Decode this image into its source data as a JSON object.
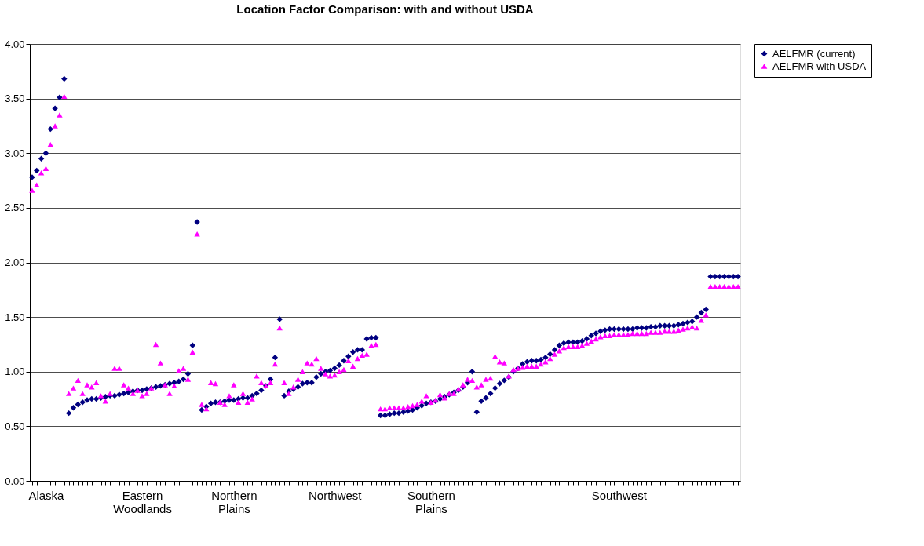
{
  "chart_data": {
    "type": "scatter",
    "title": "Location Factor Comparison: with and without USDA",
    "categories": [
      null,
      null,
      null,
      "Alaska",
      null,
      null,
      null,
      null,
      null,
      null,
      null,
      null,
      null,
      null,
      null,
      null,
      null,
      null,
      null,
      null,
      null,
      null,
      null,
      null,
      "Eastern Woodlands",
      null,
      null,
      null,
      null,
      null,
      null,
      null,
      null,
      null,
      null,
      null,
      null,
      null,
      null,
      null,
      null,
      null,
      null,
      null,
      "Northern Plains",
      null,
      null,
      null,
      null,
      null,
      null,
      null,
      null,
      null,
      null,
      null,
      null,
      null,
      null,
      null,
      null,
      null,
      null,
      null,
      null,
      null,
      "Northwest",
      null,
      null,
      null,
      null,
      null,
      null,
      null,
      null,
      null,
      null,
      null,
      null,
      null,
      null,
      null,
      null,
      null,
      null,
      null,
      null,
      "Southern Plains",
      null,
      null,
      null,
      null,
      null,
      null,
      null,
      null,
      null,
      null,
      null,
      null,
      null,
      null,
      null,
      null,
      null,
      null,
      null,
      null,
      null,
      null,
      null,
      null,
      null,
      null,
      null,
      null,
      null,
      null,
      null,
      null,
      null,
      null,
      null,
      null,
      null,
      null,
      null,
      null,
      "Southwest",
      null,
      null,
      null,
      null,
      null,
      null,
      null,
      null,
      null,
      null,
      null,
      null,
      null,
      null,
      null,
      null,
      null,
      null,
      null,
      null,
      null,
      null,
      null,
      null,
      null,
      null
    ],
    "series": [
      {
        "name": "AELFMR (current)",
        "color": "#000080",
        "marker": "diamond",
        "values": [
          2.78,
          2.84,
          2.95,
          3.0,
          3.22,
          3.41,
          3.51,
          3.68,
          0.62,
          0.67,
          0.7,
          0.72,
          0.74,
          0.75,
          0.75,
          0.76,
          0.77,
          0.78,
          0.78,
          0.79,
          0.8,
          0.81,
          0.82,
          0.83,
          0.83,
          0.84,
          0.85,
          0.86,
          0.87,
          0.88,
          0.89,
          0.9,
          0.91,
          0.93,
          0.98,
          1.24,
          2.37,
          0.65,
          0.68,
          0.71,
          0.72,
          0.72,
          0.73,
          0.74,
          0.74,
          0.75,
          0.76,
          0.76,
          0.78,
          0.8,
          0.83,
          0.87,
          0.93,
          1.13,
          1.48,
          0.78,
          0.82,
          0.84,
          0.86,
          0.89,
          0.9,
          0.9,
          0.95,
          0.98,
          1.0,
          1.01,
          1.03,
          1.06,
          1.1,
          1.14,
          1.18,
          1.2,
          1.2,
          1.3,
          1.31,
          1.31,
          0.6,
          0.6,
          0.61,
          0.62,
          0.62,
          0.63,
          0.64,
          0.65,
          0.67,
          0.69,
          0.71,
          0.72,
          0.73,
          0.75,
          0.77,
          0.79,
          0.81,
          0.83,
          0.86,
          0.9,
          1.0,
          0.63,
          0.73,
          0.76,
          0.8,
          0.85,
          0.89,
          0.92,
          0.95,
          1.0,
          1.03,
          1.07,
          1.09,
          1.1,
          1.1,
          1.11,
          1.13,
          1.16,
          1.2,
          1.24,
          1.26,
          1.27,
          1.27,
          1.27,
          1.28,
          1.3,
          1.33,
          1.35,
          1.37,
          1.38,
          1.39,
          1.39,
          1.39,
          1.39,
          1.39,
          1.39,
          1.4,
          1.4,
          1.4,
          1.41,
          1.41,
          1.42,
          1.42,
          1.42,
          1.42,
          1.43,
          1.44,
          1.45,
          1.46,
          1.5,
          1.54,
          1.57,
          1.87,
          1.87,
          1.87,
          1.87,
          1.87,
          1.87,
          1.87
        ]
      },
      {
        "name": "AELFMR with USDA",
        "color": "#ff00ff",
        "marker": "triangle",
        "values": [
          2.66,
          2.71,
          2.82,
          2.86,
          3.08,
          3.25,
          3.35,
          3.52,
          0.8,
          0.85,
          0.92,
          0.8,
          0.88,
          0.86,
          0.9,
          0.78,
          0.73,
          0.8,
          1.03,
          1.03,
          0.88,
          0.85,
          0.8,
          0.83,
          0.78,
          0.8,
          0.85,
          1.25,
          1.08,
          0.88,
          0.8,
          0.87,
          1.01,
          1.03,
          0.93,
          1.18,
          2.26,
          0.7,
          0.66,
          0.9,
          0.89,
          0.72,
          0.7,
          0.78,
          0.88,
          0.72,
          0.8,
          0.72,
          0.75,
          0.96,
          0.9,
          0.87,
          0.9,
          1.07,
          1.4,
          0.9,
          0.8,
          0.86,
          0.93,
          1.0,
          1.08,
          1.07,
          1.12,
          1.03,
          0.98,
          0.96,
          0.97,
          1.0,
          1.02,
          1.1,
          1.05,
          1.12,
          1.15,
          1.16,
          1.24,
          1.25,
          0.66,
          0.66,
          0.67,
          0.67,
          0.67,
          0.67,
          0.68,
          0.69,
          0.7,
          0.73,
          0.78,
          0.72,
          0.74,
          0.79,
          0.76,
          0.8,
          0.8,
          0.84,
          0.88,
          0.93,
          0.92,
          0.86,
          0.88,
          0.93,
          0.94,
          1.14,
          1.09,
          1.08,
          0.96,
          1.02,
          1.03,
          1.04,
          1.05,
          1.05,
          1.05,
          1.07,
          1.09,
          1.12,
          1.16,
          1.19,
          1.22,
          1.23,
          1.23,
          1.23,
          1.24,
          1.26,
          1.28,
          1.3,
          1.32,
          1.33,
          1.33,
          1.34,
          1.34,
          1.34,
          1.34,
          1.35,
          1.35,
          1.35,
          1.35,
          1.36,
          1.36,
          1.36,
          1.37,
          1.37,
          1.37,
          1.38,
          1.39,
          1.4,
          1.41,
          1.4,
          1.47,
          1.52,
          1.78,
          1.78,
          1.78,
          1.78,
          1.78,
          1.78,
          1.78
        ]
      }
    ],
    "ylim": [
      0,
      4
    ],
    "yticks": [
      {
        "value": 0,
        "label": "0.00"
      },
      {
        "value": 0.5,
        "label": "0.50"
      },
      {
        "value": 1,
        "label": "1.00"
      },
      {
        "value": 1.5,
        "label": "1.50"
      },
      {
        "value": 2,
        "label": "2.00"
      },
      {
        "value": 2.5,
        "label": "2.50"
      },
      {
        "value": 3,
        "label": "3.00"
      },
      {
        "value": 3.5,
        "label": "3.50"
      },
      {
        "value": 4,
        "label": "4.00"
      }
    ],
    "grid": "y",
    "legend": "right"
  }
}
